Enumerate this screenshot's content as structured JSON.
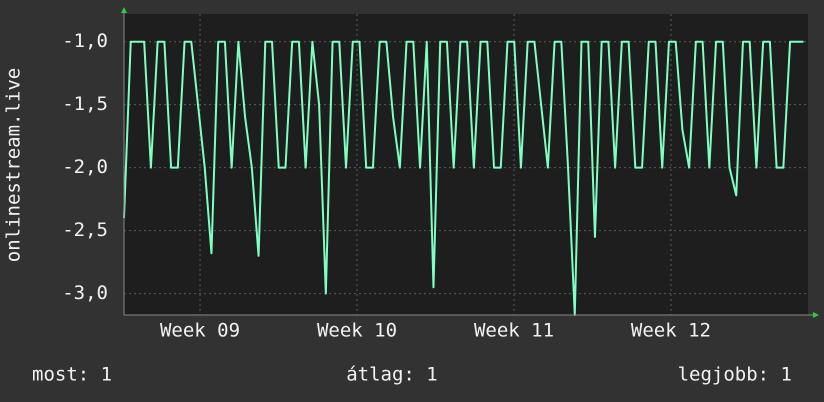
{
  "chart_data": {
    "type": "line",
    "y_label": "onlinestream.live",
    "x": [
      0,
      0.3,
      0.6,
      0.9,
      1.2,
      1.5,
      1.8,
      2.1,
      2.4,
      2.7,
      3.0,
      3.3,
      3.6,
      3.9,
      4.2,
      4.5,
      4.8,
      5.1,
      5.4,
      5.7,
      6.0,
      6.3,
      6.6,
      6.9,
      7.2,
      7.5,
      7.8,
      8.1,
      8.4,
      8.7,
      9.0,
      9.3,
      9.6,
      9.9,
      10.2,
      10.5,
      10.8,
      11.1,
      11.4,
      11.7,
      12.0,
      12.3,
      12.6,
      12.9,
      13.2,
      13.5,
      13.8,
      14.1,
      14.4,
      14.7,
      15.0,
      15.3,
      15.6,
      15.9,
      16.2,
      16.5,
      16.8,
      17.1,
      17.4,
      17.7,
      18.0,
      18.3,
      18.6,
      18.9,
      19.2,
      19.5,
      19.8,
      20.1,
      20.4,
      20.7,
      21.0,
      21.3,
      21.6,
      21.9,
      22.2,
      22.5,
      22.8,
      23.1,
      23.4,
      23.7,
      24.0,
      24.3,
      24.6,
      24.9,
      25.2,
      25.5,
      25.8,
      26.1,
      26.4,
      26.7,
      27.0,
      27.3,
      27.6,
      27.9,
      28.2,
      28.5,
      28.8,
      29.1,
      29.4,
      29.7,
      30.0,
      30.3
    ],
    "values": [
      -2.4,
      -1,
      -1,
      -1,
      -2,
      -1,
      -1,
      -2,
      -2,
      -1,
      -1,
      -1.5,
      -2,
      -2.68,
      -1,
      -1,
      -2,
      -1,
      -1.6,
      -2,
      -2.7,
      -1,
      -1,
      -2,
      -2,
      -1,
      -1,
      -2,
      -1,
      -1.5,
      -3.0,
      -1,
      -1,
      -2,
      -1,
      -1,
      -2,
      -2,
      -1,
      -1,
      -1.6,
      -2,
      -1,
      -1,
      -2,
      -1,
      -2.95,
      -1,
      -1,
      -2,
      -1,
      -1,
      -2,
      -1,
      -1,
      -2,
      -2,
      -1,
      -1,
      -2,
      -1,
      -1,
      -1.5,
      -2,
      -1,
      -1,
      -2,
      -3.17,
      -1,
      -1,
      -2.55,
      -1,
      -1,
      -2,
      -1,
      -1,
      -2,
      -2,
      -1,
      -1,
      -2,
      -1,
      -1,
      -1.7,
      -2,
      -1,
      -1,
      -2,
      -1,
      -1,
      -2,
      -2.22,
      -1,
      -1,
      -2,
      -1,
      -1,
      -2,
      -2,
      -1,
      -1,
      -1
    ],
    "color": "#7fffc0",
    "xlim": [
      0,
      30.5
    ],
    "xticks": [
      {
        "value": 3.39,
        "label": "Week 09"
      },
      {
        "value": 10.39,
        "label": "Week 10"
      },
      {
        "value": 17.39,
        "label": "Week 11"
      },
      {
        "value": 24.39,
        "label": "Week 12"
      }
    ],
    "ylim": [
      -3.17,
      -0.78
    ],
    "yticks": [
      {
        "value": -3.0,
        "label": "-3,0"
      },
      {
        "value": -2.5,
        "label": "-2,5"
      },
      {
        "value": -2.0,
        "label": "-2,0"
      },
      {
        "value": -1.5,
        "label": "-1,5"
      },
      {
        "value": -1.0,
        "label": "-1,0"
      }
    ],
    "grid": true,
    "footer": [
      "most: 1",
      "átlag: 1",
      "legjobb: 1"
    ]
  }
}
